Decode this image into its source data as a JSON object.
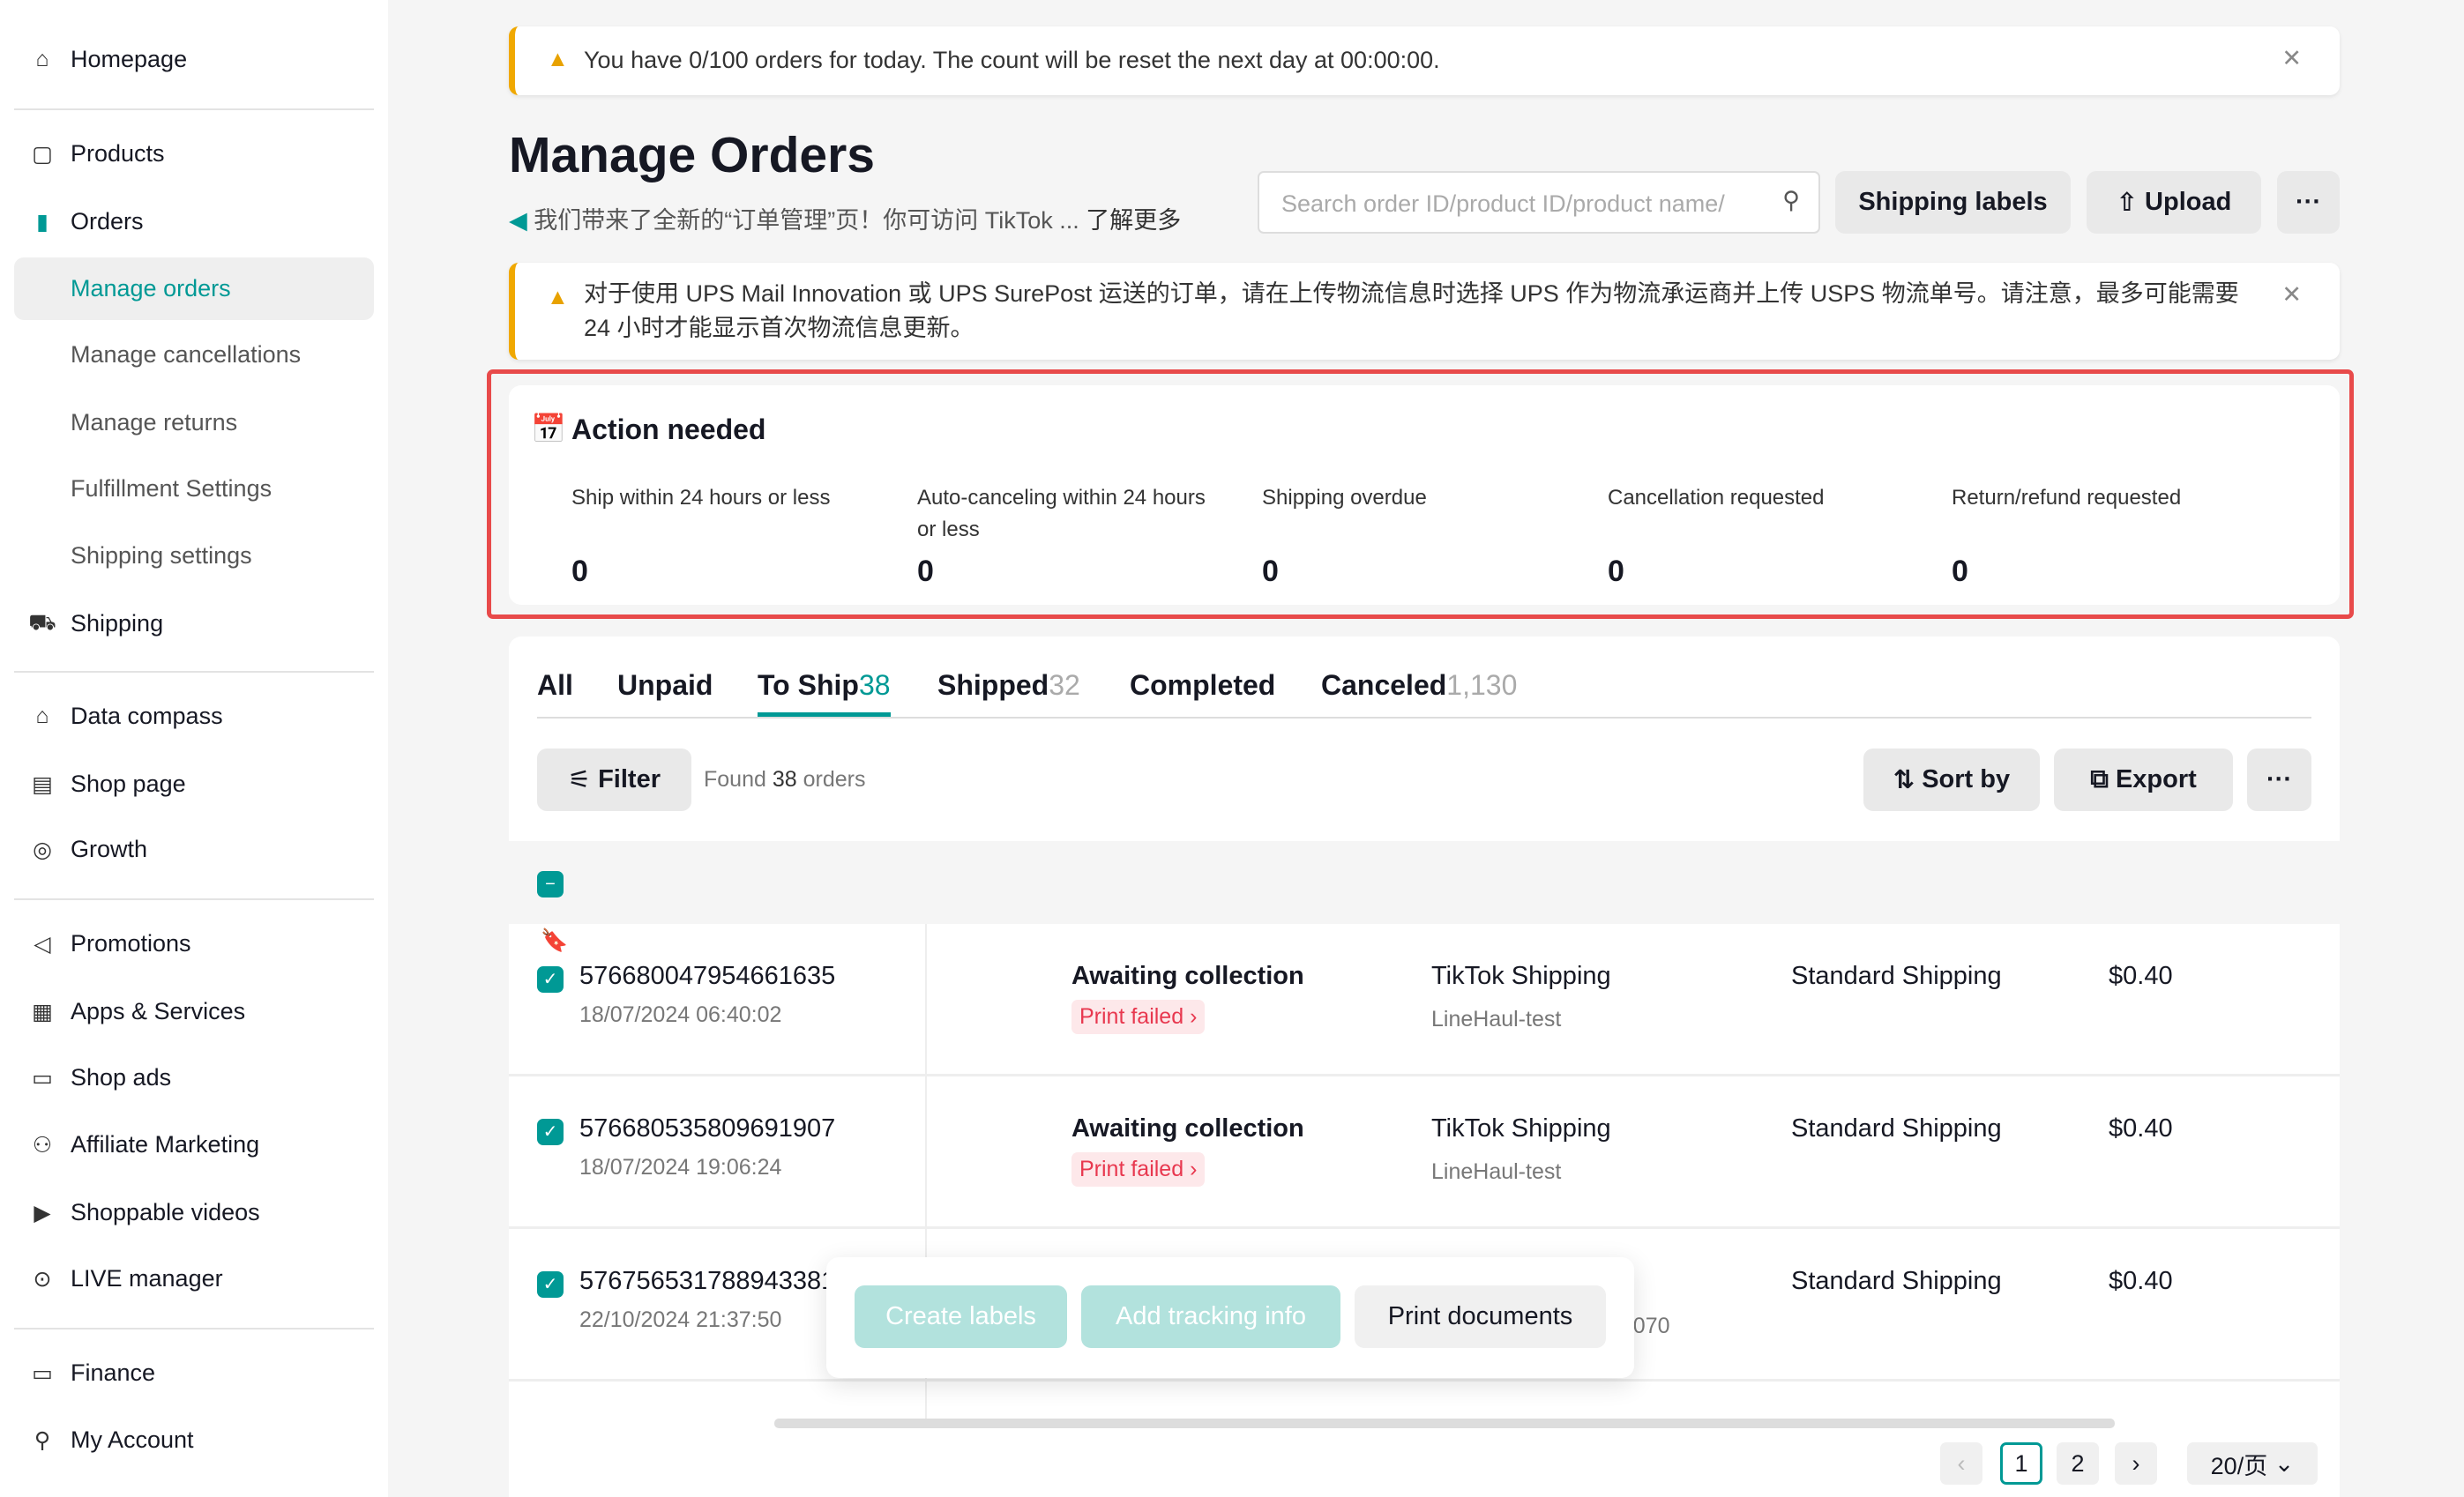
{
  "sidebar": {
    "items": [
      {
        "label": "Homepage",
        "icon": "home-icon"
      },
      {
        "label": "Products",
        "icon": "box-icon"
      },
      {
        "label": "Orders",
        "icon": "clipboard-icon"
      },
      {
        "label": "Manage orders"
      },
      {
        "label": "Manage cancellations"
      },
      {
        "label": "Manage returns"
      },
      {
        "label": "Fulfillment Settings"
      },
      {
        "label": "Shipping settings"
      },
      {
        "label": "Shipping",
        "icon": "truck-icon"
      },
      {
        "label": "Data compass",
        "icon": "compass-icon"
      },
      {
        "label": "Shop page",
        "icon": "shop-icon"
      },
      {
        "label": "Growth",
        "icon": "growth-icon"
      },
      {
        "label": "Promotions",
        "icon": "megaphone-icon"
      },
      {
        "label": "Apps & Services",
        "icon": "apps-icon"
      },
      {
        "label": "Shop ads",
        "icon": "ads-icon"
      },
      {
        "label": "Affiliate Marketing",
        "icon": "affiliate-icon"
      },
      {
        "label": "Shoppable videos",
        "icon": "video-icon"
      },
      {
        "label": "LIVE manager",
        "icon": "live-icon"
      },
      {
        "label": "Finance",
        "icon": "wallet-icon"
      },
      {
        "label": "My Account",
        "icon": "user-icon"
      }
    ]
  },
  "banner_top": "You have 0/100 orders for today. The count will be reset the next day at 00:00:00.",
  "header": {
    "title": "Manage Orders",
    "subtitle": "我们带来了全新的“订单管理”页！你可访问 TikTok ...",
    "learn_more": "了解更多",
    "search_placeholder": "Search order ID/product ID/product name/",
    "shipping_labels": "Shipping labels",
    "upload": "Upload",
    "more": "···"
  },
  "banner_ups": "对于使用 UPS Mail Innovation 或 UPS SurePost 运送的订单，请在上传物流信息时选择 UPS 作为物流承运商并上传 USPS 物流单号。请注意，最多可能需要 24 小时才能显示首次物流信息更新。",
  "action_needed": {
    "title": "Action needed",
    "items": [
      {
        "label": "Ship within 24 hours or less",
        "value": "0"
      },
      {
        "label": "Auto-canceling within 24 hours or less",
        "value": "0"
      },
      {
        "label": "Shipping overdue",
        "value": "0"
      },
      {
        "label": "Cancellation requested",
        "value": "0"
      },
      {
        "label": "Return/refund requested",
        "value": "0"
      }
    ]
  },
  "tabs": [
    {
      "label": "All",
      "count": ""
    },
    {
      "label": "Unpaid",
      "count": ""
    },
    {
      "label": "To Ship",
      "count": "38",
      "active": true
    },
    {
      "label": "Shipped",
      "count": "32"
    },
    {
      "label": "Completed",
      "count": ""
    },
    {
      "label": "Canceled",
      "count": "1,130"
    }
  ],
  "toolbar": {
    "filter": "Filter",
    "found_prefix": "Found",
    "found_count": "38",
    "found_suffix": "orders",
    "sort": "Sort by",
    "export": "Export",
    "more": "···"
  },
  "orders": [
    {
      "id": "576680047954661635",
      "date": "18/07/2024 06:40:02",
      "status": "Awaiting collection",
      "badge": "Print failed",
      "carrier": "TikTok Shipping",
      "carrier_sub": "LineHaul-test",
      "method": "Standard Shipping",
      "price": "$0.40",
      "flagged": true
    },
    {
      "id": "576680535809691907",
      "date": "18/07/2024 19:06:24",
      "status": "Awaiting collection",
      "badge": "Print failed",
      "carrier": "TikTok Shipping",
      "carrier_sub": "LineHaul-test",
      "method": "Standard Shipping",
      "price": "$0.40"
    },
    {
      "id": "576756531788943381",
      "date": "22/10/2024 21:37:50",
      "carrier_sub": "92070",
      "method": "Standard Shipping",
      "price": "$0.40"
    }
  ],
  "bulk": {
    "create_labels": "Create labels",
    "add_tracking": "Add tracking info",
    "print_documents": "Print documents"
  },
  "pagination": {
    "pages": [
      "1",
      "2"
    ],
    "current": "1",
    "page_size": "20/页"
  },
  "colors": {
    "accent": "#009995",
    "warning": "#f0a800",
    "danger": "#e8384f"
  }
}
